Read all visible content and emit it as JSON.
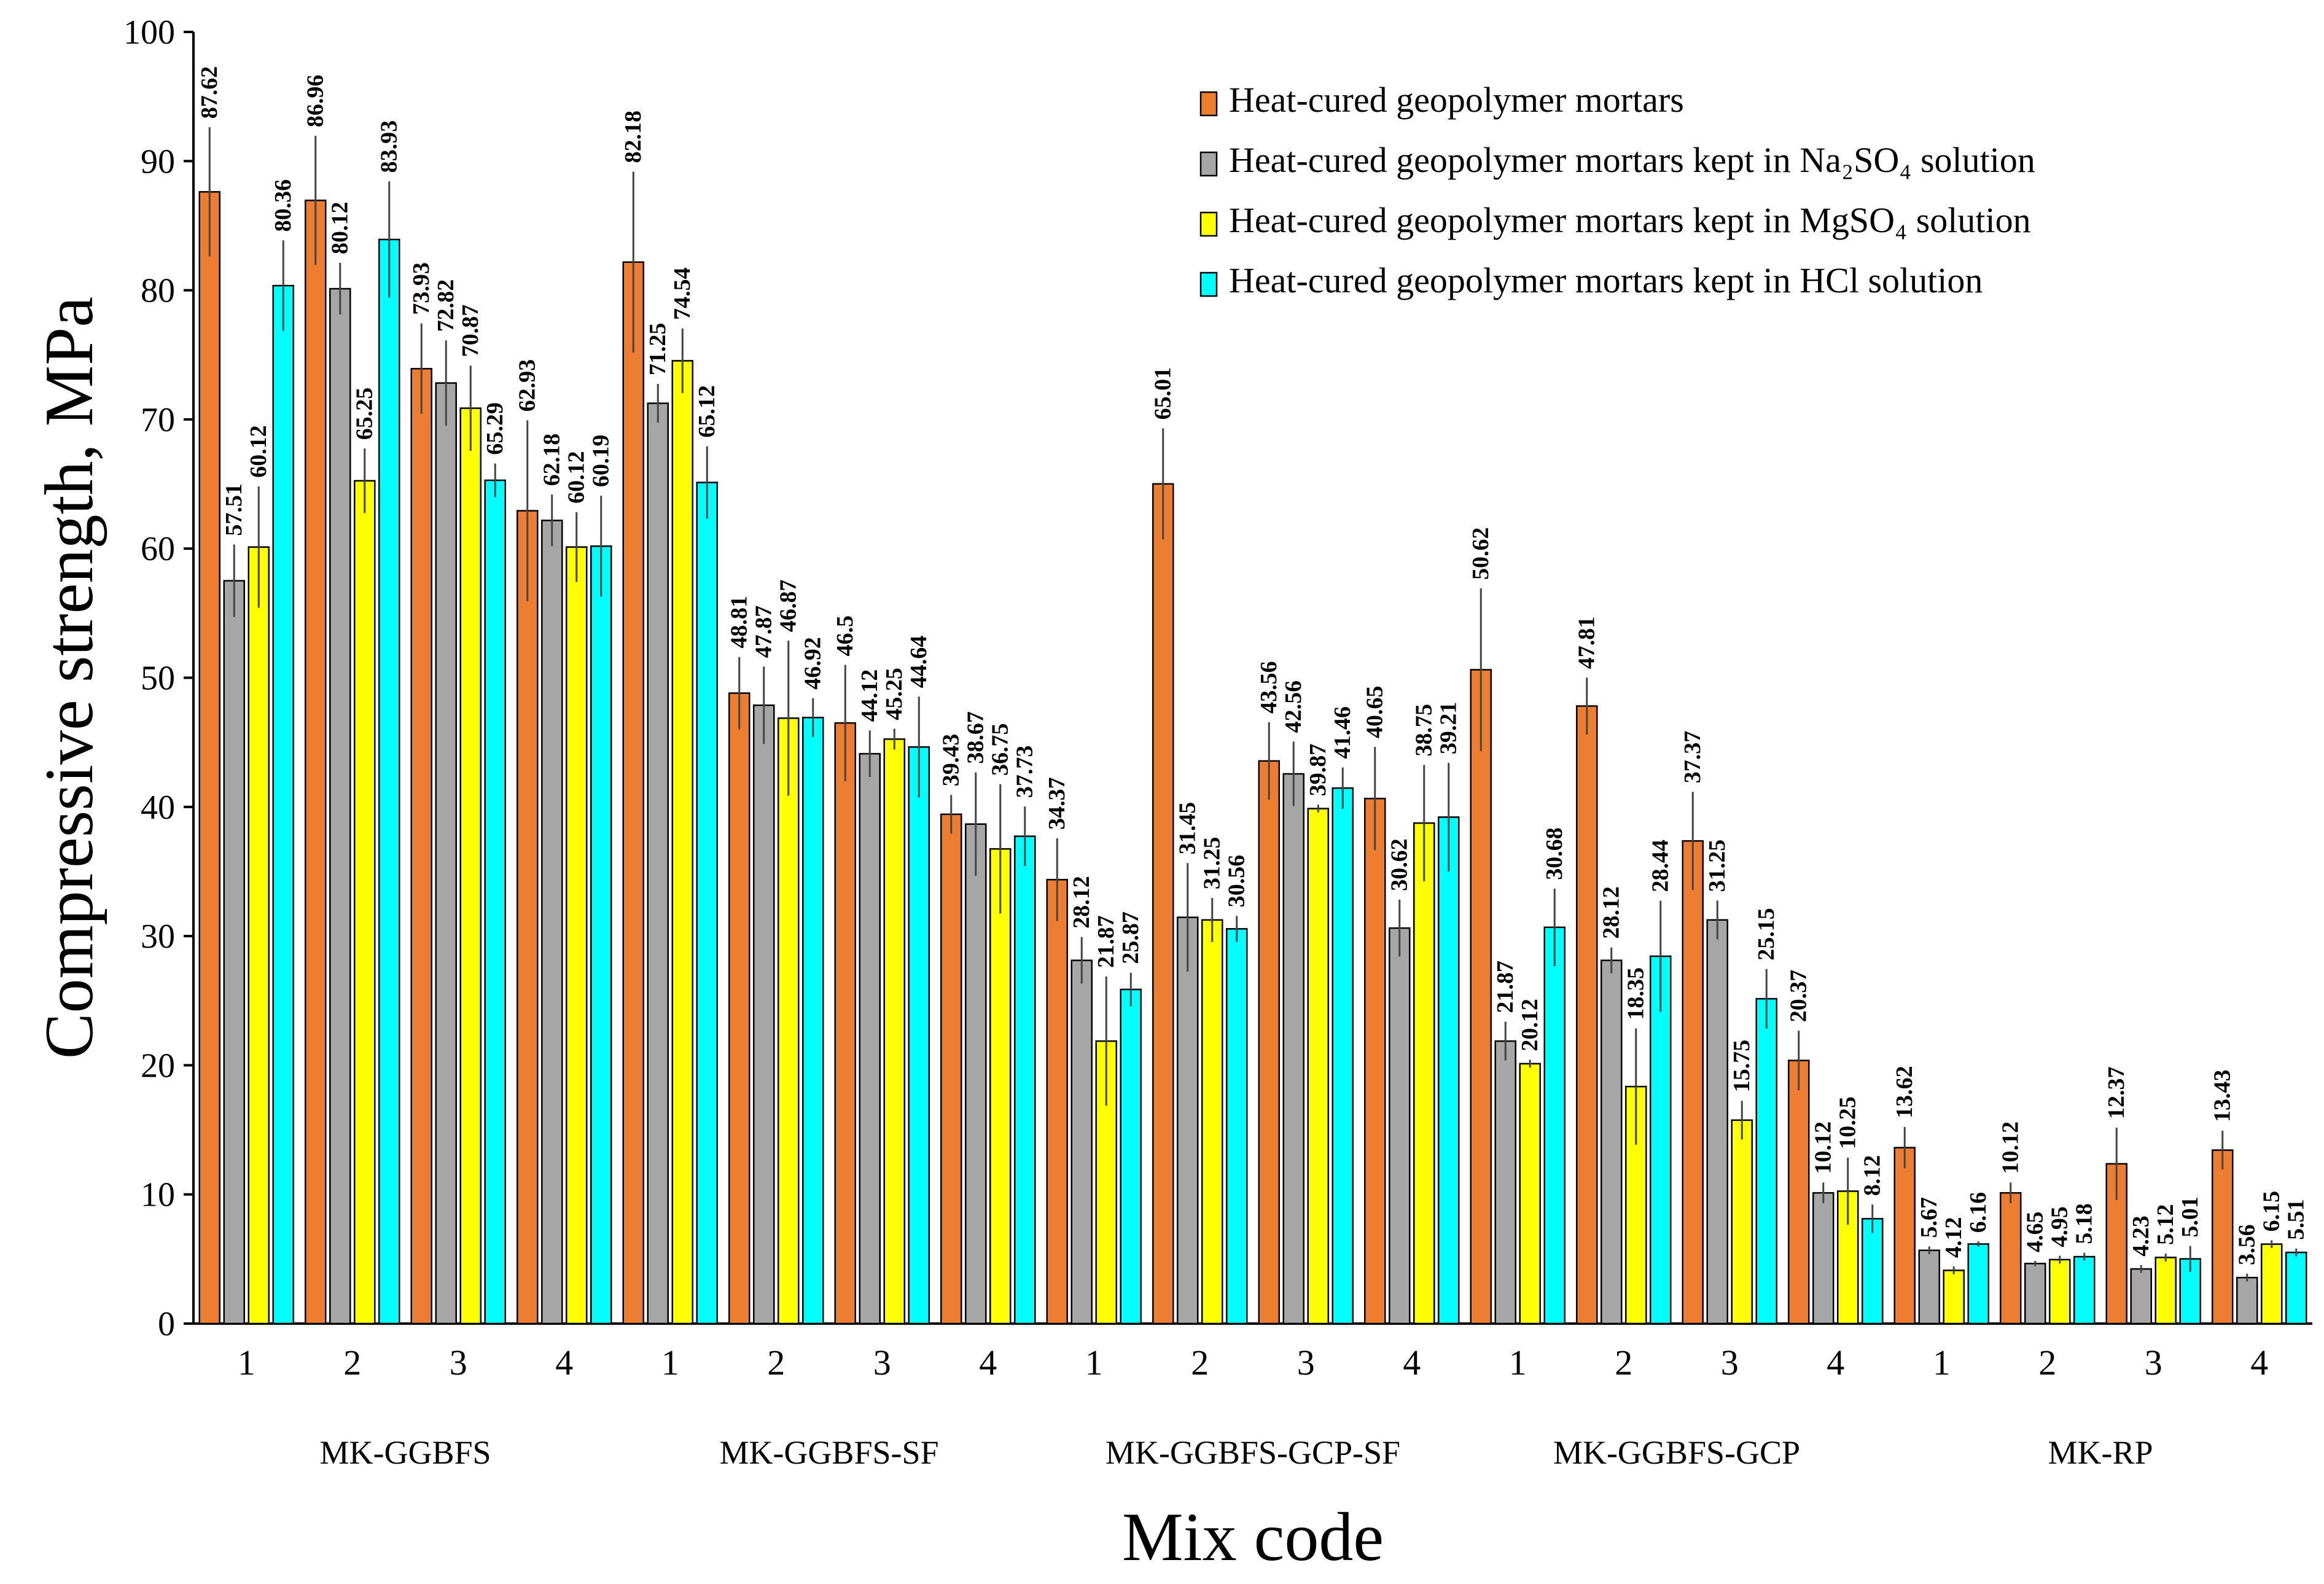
{
  "chart_data": {
    "type": "bar",
    "title": "",
    "xlabel": "Mix code",
    "ylabel": "Compressive strength, MPa",
    "ylim": [
      0,
      100
    ],
    "yticks": [
      0,
      10,
      20,
      30,
      40,
      50,
      60,
      70,
      80,
      90,
      100
    ],
    "legend_position": "top-right",
    "groups": [
      {
        "name": "MK-GGBFS",
        "categories": [
          "1",
          "2",
          "3",
          "4"
        ]
      },
      {
        "name": "MK-GGBFS-SF",
        "categories": [
          "1",
          "2",
          "3",
          "4"
        ]
      },
      {
        "name": "MK-GGBFS-GCP-SF",
        "categories": [
          "1",
          "2",
          "3",
          "4"
        ]
      },
      {
        "name": "MK-GGBFS-GCP",
        "categories": [
          "1",
          "2",
          "3",
          "4"
        ]
      },
      {
        "name": "MK-RP",
        "categories": [
          "1",
          "2",
          "3",
          "4"
        ]
      }
    ],
    "series": [
      {
        "name": "Heat-cured geopolymer mortars",
        "color": "#ED7D31",
        "values": [
          87.62,
          86.96,
          73.93,
          62.93,
          82.18,
          48.81,
          46.5,
          39.43,
          34.37,
          65.01,
          43.56,
          40.65,
          50.62,
          47.81,
          37.37,
          20.37,
          13.62,
          10.12,
          12.37,
          13.43
        ],
        "labels": [
          "87.62",
          "86.96",
          "73.93",
          "62.93",
          "82.18",
          "48.81",
          "46.5",
          "39.43",
          "34.37",
          "65.01",
          "43.56",
          "40.65",
          "50.62",
          "47.81",
          "37.37",
          "20.37",
          "13.62",
          "10.12",
          "12.37",
          "13.43"
        ],
        "errors": [
          5,
          5,
          3.5,
          7,
          7,
          2.8,
          4.5,
          1.5,
          3.2,
          4.3,
          3,
          4,
          6.3,
          2.2,
          3.8,
          2.3,
          1.6,
          0.8,
          2.8,
          1.5
        ]
      },
      {
        "name": "Heat-cured geopolymer mortars kept in Na₂SO₄ solution",
        "color": "#A6A6A6",
        "values": [
          57.51,
          80.12,
          72.82,
          62.18,
          71.25,
          47.87,
          44.12,
          38.67,
          28.12,
          31.45,
          42.56,
          30.62,
          21.87,
          28.12,
          31.25,
          10.12,
          5.67,
          4.65,
          4.23,
          3.56
        ],
        "labels": [
          "57.51",
          "80.12",
          "72.82",
          "62.18",
          "71.25",
          "47.87",
          "44.12",
          "38.67",
          "28.12",
          "31.45",
          "42.56",
          "30.62",
          "21.87",
          "28.12",
          "31.25",
          "10.12",
          "5.67",
          "4.65",
          "4.23",
          "3.56"
        ],
        "errors": [
          2.8,
          2,
          3.3,
          2,
          1.5,
          3,
          1.8,
          4,
          1.8,
          4.2,
          2.5,
          2.2,
          1.5,
          1,
          1.5,
          0.8,
          0.3,
          0.2,
          0.3,
          0.3
        ]
      },
      {
        "name": "Heat-cured geopolymer mortars kept in MgSO₄ solution",
        "color": "#FFFF00",
        "values": [
          60.12,
          65.25,
          70.87,
          60.12,
          74.54,
          46.87,
          45.25,
          36.75,
          21.87,
          31.25,
          39.87,
          38.75,
          20.12,
          18.35,
          15.75,
          10.25,
          4.12,
          4.95,
          5.12,
          6.15
        ],
        "labels": [
          "60.12",
          "65.25",
          "70.87",
          "60.12",
          "74.54",
          "46.87",
          "45.25",
          "36.75",
          "21.87",
          "31.25",
          "39.87",
          "38.75",
          "20.12",
          "18.35",
          "15.75",
          "10.25",
          "4.12",
          "4.95",
          "5.12",
          "6.15"
        ],
        "errors": [
          4.7,
          2.5,
          3.3,
          2.7,
          2.5,
          6,
          0.8,
          5,
          5,
          1.7,
          0.3,
          4.5,
          0.3,
          4.5,
          1.5,
          2.6,
          0.3,
          0.3,
          0.3,
          0.3
        ]
      },
      {
        "name": "Heat-cured geopolymer mortars kept in HCl solution",
        "color": "#00FFFF",
        "values": [
          80.36,
          83.93,
          65.29,
          60.19,
          65.12,
          46.92,
          44.64,
          37.73,
          25.87,
          30.56,
          41.46,
          39.21,
          30.68,
          28.44,
          25.15,
          8.12,
          6.16,
          5.18,
          5.01,
          5.51
        ],
        "labels": [
          "80.36",
          "83.93",
          "65.29",
          "60.19",
          "65.12",
          "46.92",
          "44.64",
          "37.73",
          "25.87",
          "30.56",
          "41.46",
          "39.21",
          "30.68",
          "28.44",
          "25.15",
          "8.12",
          "6.16",
          "5.18",
          "5.01",
          "5.51"
        ],
        "errors": [
          3.5,
          4.5,
          1.3,
          3.9,
          2.8,
          1.5,
          3.9,
          2.3,
          1.3,
          1,
          1.6,
          4.2,
          3,
          4.3,
          2.3,
          1.1,
          0.2,
          0.3,
          1,
          0.3
        ]
      }
    ]
  }
}
